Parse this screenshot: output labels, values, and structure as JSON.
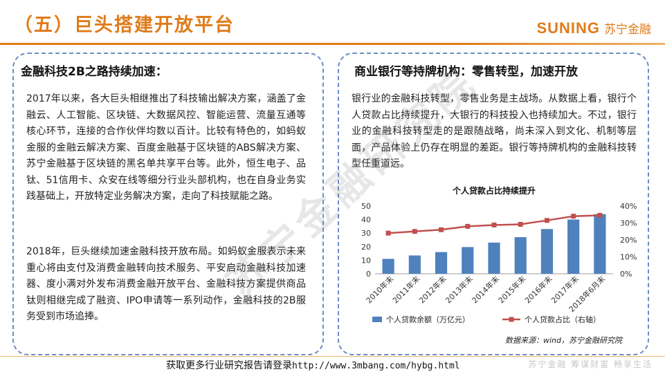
{
  "header": {
    "title": "（五）巨头搭建开放平台",
    "brand_en": "SUNING",
    "brand_cn": "苏宁金融"
  },
  "left_panel": {
    "heading": "金融科技2B之路持续加速：",
    "p1": "2017年以来，各大巨头相继推出了科技输出解决方案，涵盖了金融云、人工智能、区块链、大数据风控、智能运营、流量互通等核心环节，连接的合作伙伴均数以百计。比较有特色的，如蚂蚁金服的金融云解决方案、百度金融基于区块链的ABS解决方案、苏宁金融基于区块链的黑名单共享平台等。此外，恒生电子、品钛、51信用卡、众安在线等细分行业头部机构，也在自身业务实践基础上，开放特定业务解决方案，走向了科技赋能之路。",
    "p2": "2018年，巨头继续加速金融科技开放布局。如蚂蚁金服表示未来重心将由支付及消费金融转向技术服务、平安启动金融科技加速器、度小满对外发布消费金融开放平台、金融科技方案提供商品钛则相继完成了融资、IPO申请等一系列动作，金融科技的2B服务受到市场追捧。"
  },
  "right_panel": {
    "heading": "商业银行等持牌机构：零售转型，加速开放",
    "p1": "银行业的金融科技转型，零售业务是主战场。从数据上看，银行个人贷款占比持续提升，大银行的科技投入也持续加大。不过，银行业的金融科技转型走的是跟随战略，尚未深入到文化、机制等层面，产品体验上仍存在明显的差距。银行等持牌机构的金融科技转型任重道远。",
    "source": "数据来源：wind，苏宁金融研究院"
  },
  "watermark": "苏宁金融研究院",
  "chart_data": {
    "type": "bar",
    "title": "个人贷款占比持续提升",
    "categories": [
      "2010年末",
      "2011年末",
      "2012年末",
      "2013年末",
      "2014年末",
      "2015年末",
      "2016年末",
      "2017年末",
      "2018年6月末"
    ],
    "series": [
      {
        "name": "个人贷款余额（万亿元）",
        "type": "bar",
        "axis": "left",
        "values": [
          11,
          13.5,
          16,
          19.7,
          23,
          27,
          33,
          40,
          44
        ]
      },
      {
        "name": "个人贷款占比（右轴）",
        "type": "line",
        "axis": "right",
        "values": [
          24,
          25,
          26,
          28,
          28.8,
          29.2,
          31.5,
          34,
          34.5
        ]
      }
    ],
    "y_left": {
      "min": 0,
      "max": 50,
      "ticks": [
        "0",
        "10",
        "20",
        "30",
        "40",
        "50"
      ]
    },
    "y_right": {
      "min": 0,
      "max": 40,
      "ticks": [
        "0%",
        "10%",
        "20%",
        "30%",
        "40%"
      ]
    },
    "grid": false,
    "legend_position": "bottom",
    "colors": {
      "bar": "#4f81bd",
      "line": "#c0504d"
    }
  },
  "footer": {
    "text": "获取更多行业研究报告请登录",
    "url": "http://www.3mbang.com/hybg.html",
    "slogan": "苏宁金融  筹谋财富  畅享生活"
  }
}
